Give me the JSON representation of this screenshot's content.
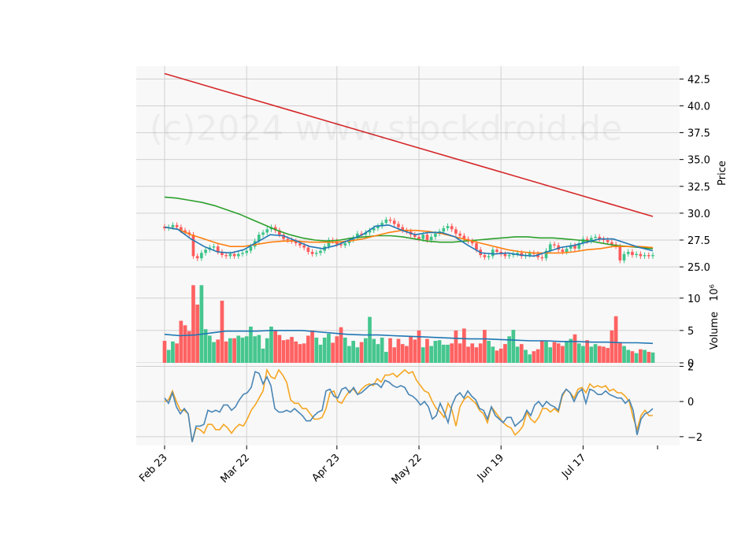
{
  "watermark": "(c)2024 www.stockdroid.de",
  "colors": {
    "up": "#3cc389",
    "down": "#ff5a5a",
    "sma200": "#d62728",
    "sma50": "#2ca02c",
    "sma20": "#ff7f0e",
    "sma10": "#1f77b4",
    "vol_avg": "#1f77b4",
    "osc1": "#4a86b5",
    "osc2": "#f5a623",
    "panel_bg": "#f8f8f8",
    "grid": "#d0d0d0"
  },
  "chart_data": {
    "type": "candlestick",
    "x_ticks": [
      "Feb 23",
      "Mar 22",
      "Apr 23",
      "May 22",
      "Jun 19",
      "Jul 17"
    ],
    "x_tick_index": [
      0,
      20,
      42,
      62,
      82,
      102
    ],
    "n_sessions": 120,
    "price_panel": {
      "ylabel": "Price",
      "ylim": [
        24.2,
        43.7
      ],
      "y_ticks": [
        "25.0",
        "27.5",
        "30.0",
        "32.5",
        "35.0",
        "37.5",
        "40.0",
        "42.5"
      ],
      "close": [
        28.6,
        28.7,
        28.9,
        28.7,
        28.4,
        28.2,
        28.0,
        26.0,
        25.8,
        26.3,
        26.6,
        26.8,
        26.9,
        26.4,
        26.1,
        26.0,
        26.2,
        26.0,
        26.2,
        26.3,
        26.5,
        26.9,
        27.4,
        28.0,
        28.2,
        28.5,
        28.7,
        28.4,
        28.0,
        27.6,
        27.5,
        27.4,
        27.2,
        27.0,
        26.8,
        26.4,
        26.2,
        26.3,
        26.5,
        26.9,
        27.5,
        27.4,
        27.1,
        27.0,
        27.2,
        27.5,
        27.7,
        28.1,
        28.0,
        28.2,
        28.4,
        28.6,
        28.8,
        29.1,
        29.4,
        29.3,
        29.0,
        28.7,
        28.4,
        28.3,
        28.0,
        27.8,
        27.6,
        28.0,
        27.5,
        27.8,
        28.1,
        28.3,
        28.6,
        28.8,
        28.5,
        28.1,
        27.9,
        27.6,
        27.4,
        27.2,
        26.6,
        26.1,
        25.9,
        26.0,
        26.6,
        26.4,
        26.2,
        26.0,
        26.1,
        26.2,
        26.3,
        26.0,
        26.1,
        26.3,
        26.2,
        25.9,
        25.8,
        26.5,
        27.1,
        27.0,
        26.6,
        26.4,
        26.7,
        27.0,
        26.7,
        27.2,
        27.6,
        27.4,
        27.7,
        27.8,
        27.6,
        27.5,
        27.3,
        27.1,
        26.9,
        25.6,
        26.2,
        26.4,
        26.1,
        26.2,
        26.0,
        26.1,
        26.0,
        26.1
      ],
      "sma200": [
        43.0,
        29.7
      ],
      "sma50": [
        31.5,
        31.4,
        31.2,
        31.0,
        30.7,
        30.3,
        29.9,
        29.4,
        28.9,
        28.4,
        28.0,
        27.7,
        27.5,
        27.4,
        27.5,
        27.7,
        27.8,
        27.9,
        27.9,
        27.8,
        27.6,
        27.4,
        27.3,
        27.3,
        27.4,
        27.5,
        27.6,
        27.7,
        27.8,
        27.8,
        27.7,
        27.7,
        27.6,
        27.5,
        27.4,
        27.2,
        27.0,
        26.9,
        26.8,
        26.7
      ],
      "sma20": [
        28.7,
        28.5,
        28.0,
        27.6,
        27.2,
        26.9,
        26.9,
        27.1,
        27.3,
        27.4,
        27.4,
        27.3,
        27.3,
        27.3,
        27.4,
        27.6,
        27.9,
        28.2,
        28.4,
        28.4,
        28.3,
        28.1,
        27.8,
        27.5,
        27.2,
        26.9,
        26.6,
        26.4,
        26.3,
        26.3,
        26.3,
        26.4,
        26.6,
        26.7,
        26.9,
        26.9,
        26.9,
        26.8
      ],
      "sma10": [
        28.7,
        28.5,
        27.6,
        26.9,
        26.4,
        26.3,
        26.6,
        27.3,
        28.0,
        27.9,
        27.4,
        26.9,
        26.7,
        27.0,
        27.5,
        28.0,
        28.8,
        28.9,
        28.4,
        28.0,
        28.2,
        28.2,
        27.8,
        27.0,
        26.3,
        26.2,
        26.3,
        26.1,
        26.0,
        26.4,
        26.8,
        27.0,
        27.3,
        27.6,
        27.6,
        27.2,
        26.8,
        26.5
      ]
    },
    "volume_panel": {
      "ylabel": "Volume",
      "exponent_label": "10⁶",
      "ylim": [
        0,
        13.5
      ],
      "y_ticks": [
        "0",
        "5",
        "10"
      ],
      "values": [
        3.4,
        2.0,
        3.3,
        3.0,
        6.5,
        5.8,
        4.9,
        12.0,
        9.0,
        12.0,
        5.2,
        4.2,
        3.2,
        3.6,
        9.6,
        3.3,
        3.8,
        3.8,
        4.2,
        3.9,
        4.1,
        5.6,
        4.1,
        4.3,
        2.2,
        3.8,
        5.6,
        5.0,
        4.3,
        3.5,
        3.6,
        4.0,
        3.3,
        2.9,
        3.0,
        4.2,
        5.0,
        3.9,
        2.8,
        3.9,
        4.5,
        3.1,
        4.1,
        5.5,
        3.9,
        2.6,
        3.4,
        2.4,
        3.2,
        3.8,
        7.1,
        3.7,
        2.9,
        3.9,
        1.7,
        3.8,
        2.4,
        3.7,
        2.9,
        2.6,
        4.1,
        3.6,
        5.0,
        2.4,
        3.7,
        2.6,
        3.4,
        3.5,
        2.8,
        2.8,
        3.0,
        5.0,
        3.0,
        5.3,
        2.5,
        3.0,
        2.4,
        3.0,
        5.1,
        3.4,
        2.5,
        1.9,
        2.2,
        2.9,
        4.1,
        5.1,
        2.5,
        2.9,
        2.0,
        1.3,
        1.8,
        2.1,
        3.4,
        3.3,
        2.4,
        3.2,
        3.0,
        2.6,
        3.3,
        3.7,
        4.4,
        3.0,
        2.6,
        3.5,
        2.5,
        2.9,
        2.6,
        2.5,
        2.3,
        5.0,
        7.2,
        3.2,
        2.6,
        2.0,
        1.8,
        1.5,
        2.1,
        2.0,
        1.7,
        1.6
      ],
      "avg": [
        4.4,
        4.2,
        4.3,
        4.6,
        4.9,
        4.9,
        4.9,
        5.0,
        5.0,
        5.0,
        4.8,
        4.6,
        4.4,
        4.3,
        4.3,
        4.2,
        4.1,
        4.0,
        3.9,
        3.8,
        3.7,
        3.7,
        3.6,
        3.5,
        3.4,
        3.4,
        3.3,
        3.3,
        3.2,
        3.2,
        3.1,
        3.1,
        3.0
      ]
    },
    "oscillator_panel": {
      "ylim": [
        -2.5,
        2.2
      ],
      "y_ticks": [
        "−2",
        "0",
        "2"
      ],
      "series": [
        {
          "values": [
            0.2,
            -0.1,
            0.5,
            -0.3,
            -0.7,
            -0.4,
            -0.7,
            -2.3,
            -1.4,
            -1.4,
            -1.3,
            -0.5,
            -0.6,
            -0.5,
            -0.6,
            -0.2,
            -0.2,
            -0.5,
            -0.3,
            0.1,
            0.4,
            0.5,
            0.8,
            1.7,
            1.6,
            1.0,
            1.4,
            0.9,
            -0.4,
            -0.6,
            -0.6,
            -0.5,
            -0.6,
            -0.4,
            -0.6,
            -0.8,
            -1.1,
            -1.1,
            -0.8,
            -0.6,
            -0.5,
            0.6,
            0.7,
            0.3,
            0.2,
            0.7,
            0.8,
            0.5,
            0.8,
            0.4,
            0.5,
            0.7,
            0.9,
            1.0,
            1.0,
            0.8,
            1.2,
            1.1,
            0.9,
            0.8,
            0.9,
            0.8,
            0.4,
            0.3,
            0.1,
            -0.2,
            0.0,
            -0.3,
            -1.0,
            -0.8,
            -0.1,
            -0.6,
            -1.2,
            -0.2,
            0.3,
            0.5,
            0.2,
            0.6,
            0.3,
            0.1,
            -0.4,
            -0.5,
            -1.0,
            -0.3,
            -0.8,
            -1.0,
            -1.2,
            -0.9,
            -0.9,
            -1.4,
            -1.2,
            -1.0,
            -0.5,
            -0.8,
            -0.2,
            0.0,
            -0.3,
            0.0,
            -0.2,
            -0.3,
            -0.5,
            0.4,
            0.7,
            0.5,
            0.0,
            0.5,
            0.7,
            -0.1,
            0.7,
            0.6,
            0.4,
            0.4,
            0.6,
            0.4,
            0.3,
            0.2,
            0.2,
            -0.1,
            0.1,
            -0.5,
            -1.9,
            -1.0,
            -0.7,
            -0.6,
            -0.4
          ]
        },
        {
          "values": [
            0.0,
            0.1,
            0.6,
            0.0,
            -0.5,
            -0.5,
            -0.7,
            -2.3,
            -1.5,
            -1.6,
            -1.8,
            -1.3,
            -1.3,
            -1.6,
            -1.6,
            -1.3,
            -1.5,
            -1.8,
            -1.5,
            -1.3,
            -1.4,
            -1.0,
            -0.5,
            -0.2,
            0.2,
            0.6,
            1.8,
            1.4,
            1.3,
            1.8,
            1.5,
            1.1,
            0.1,
            -0.1,
            -0.1,
            -0.4,
            -0.4,
            -0.7,
            -1.0,
            -1.0,
            -0.9,
            -0.4,
            0.5,
            0.6,
            0.0,
            -0.1,
            0.3,
            0.6,
            0.7,
            0.4,
            0.7,
            0.9,
            1.0,
            0.9,
            1.3,
            1.1,
            1.5,
            1.5,
            1.6,
            1.4,
            1.6,
            1.8,
            1.6,
            1.7,
            1.2,
            0.9,
            0.6,
            0.5,
            0.0,
            -0.4,
            -0.6,
            -0.9,
            -0.1,
            -0.5,
            -1.4,
            -0.3,
            0.1,
            0.3,
            0.1,
            -0.1,
            -0.5,
            -0.7,
            -1.2,
            -0.3,
            -0.6,
            -0.9,
            -1.2,
            -1.4,
            -1.5,
            -1.9,
            -1.7,
            -1.4,
            -0.6,
            -1.0,
            -1.2,
            -0.9,
            -0.4,
            -0.4,
            -0.6,
            -0.4,
            -0.6,
            0.3,
            0.7,
            0.5,
            0.2,
            0.7,
            0.8,
            0.5,
            1.0,
            0.8,
            0.9,
            0.8,
            0.9,
            0.6,
            0.7,
            0.5,
            0.5,
            0.3,
            0.0,
            -0.9,
            -1.6,
            -0.8,
            -0.5,
            -0.8,
            -0.8
          ]
        }
      ]
    }
  }
}
